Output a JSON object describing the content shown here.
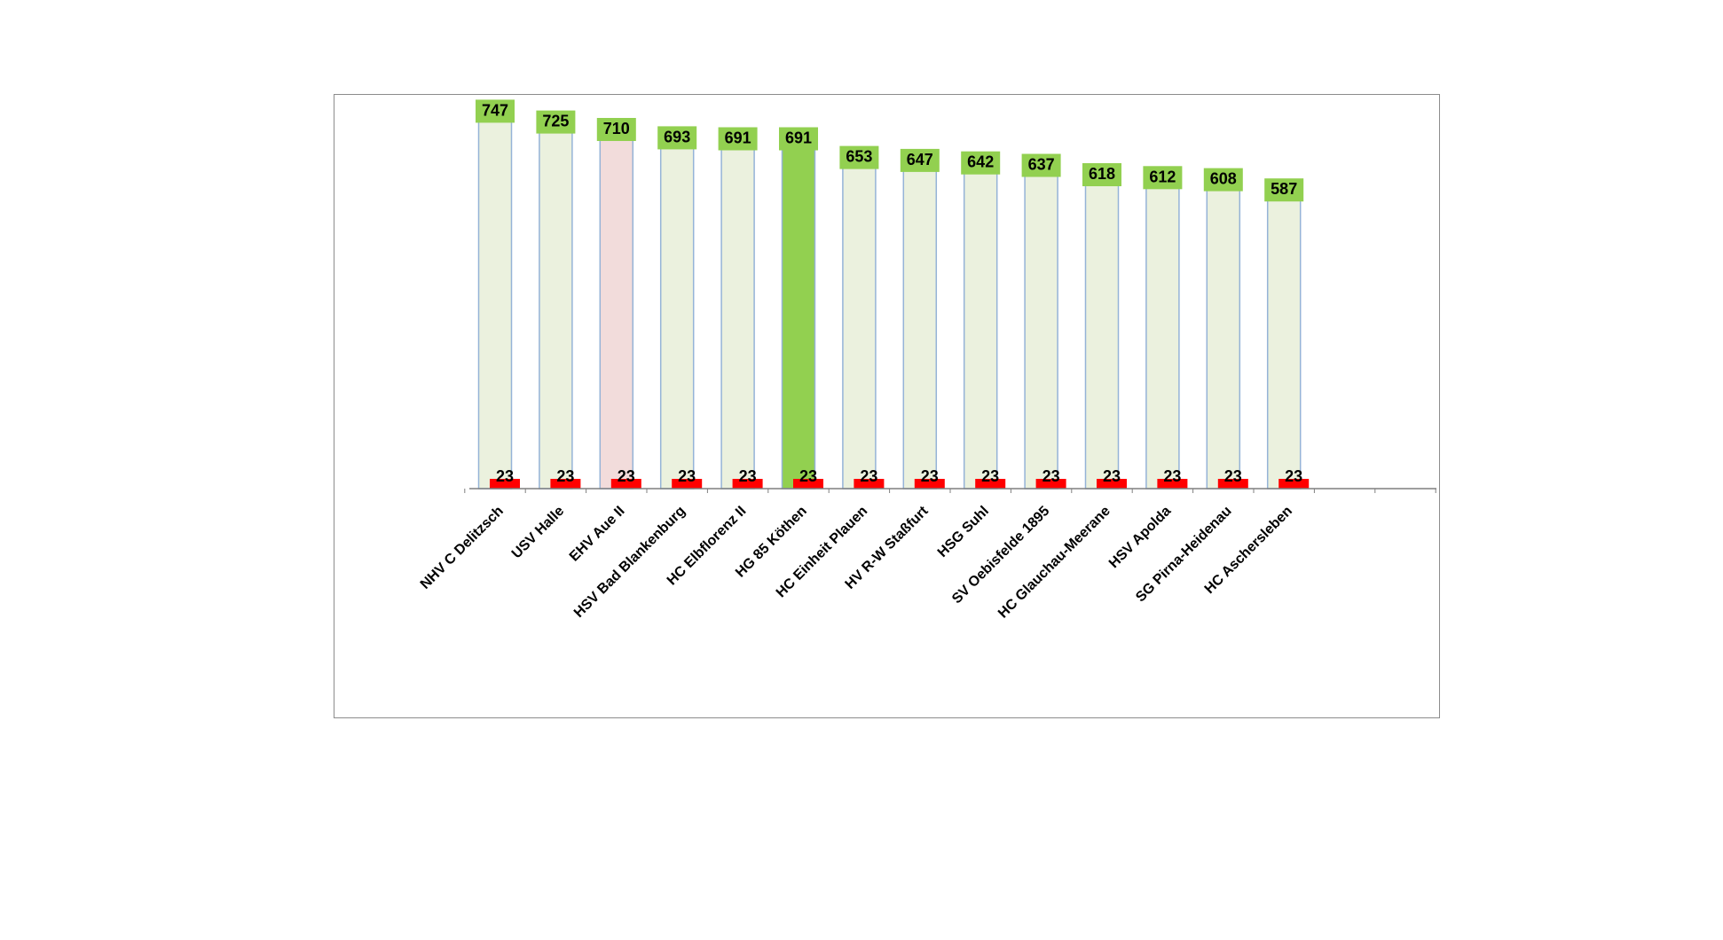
{
  "chart_data": {
    "type": "bar",
    "categories": [
      "NHV C Delitzsch",
      "USV Halle",
      "EHV Aue II",
      "HSV Bad Blankenburg",
      "HC Elbflorenz II",
      "HG 85 Köthen",
      "HC Einheit Plauen",
      "HV R-W Staßfurt",
      "HSG Suhl",
      "SV Oebisfelde 1895",
      "HC Glauchau-Meerane",
      "HSV Apolda",
      "SG Pirna-Heidenau",
      "HC Aschersleben"
    ],
    "series": [
      {
        "values": [
          747,
          725,
          710,
          693,
          691,
          691,
          653,
          647,
          642,
          637,
          618,
          612,
          608,
          587
        ]
      },
      {
        "values": [
          23,
          23,
          23,
          23,
          23,
          23,
          23,
          23,
          23,
          23,
          23,
          23,
          23,
          23
        ]
      }
    ],
    "highlight": {
      "HG 85 Köthen": "#92d050",
      "EHV Aue II": "#f2dcdb"
    },
    "colors": {
      "bar_fill": "#ebf1de",
      "bar_stroke": "#95b3d7",
      "value_label_bg": "#92d050",
      "games_marker": "#ff0000",
      "axis": "#7f7f7f"
    },
    "ylim": [
      0,
      800
    ],
    "grid": false,
    "legend": "none",
    "title": "",
    "xlabel": "",
    "ylabel": ""
  }
}
